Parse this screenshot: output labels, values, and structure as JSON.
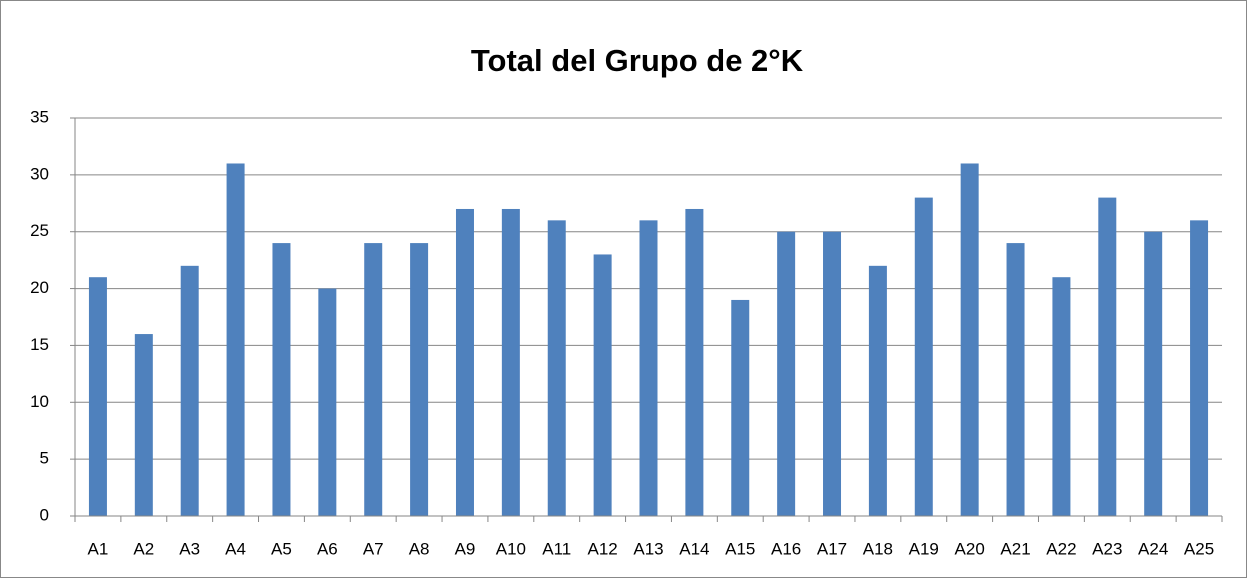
{
  "chart_data": {
    "type": "bar",
    "title": "Total del Grupo de 2°K",
    "categories": [
      "A1",
      "A2",
      "A3",
      "A4",
      "A5",
      "A6",
      "A7",
      "A8",
      "A9",
      "A10",
      "A11",
      "A12",
      "A13",
      "A14",
      "A15",
      "A16",
      "A17",
      "A18",
      "A19",
      "A20",
      "A21",
      "A22",
      "A23",
      "A24",
      "A25"
    ],
    "values": [
      21,
      16,
      22,
      31,
      24,
      20,
      24,
      24,
      27,
      27,
      26,
      23,
      26,
      27,
      19,
      25,
      25,
      22,
      28,
      31,
      24,
      21,
      28,
      25,
      26
    ],
    "color": "#4f81bd",
    "ylim": [
      0,
      35
    ],
    "yticks": [
      0,
      5,
      10,
      15,
      20,
      25,
      30,
      35
    ],
    "grid": true
  }
}
